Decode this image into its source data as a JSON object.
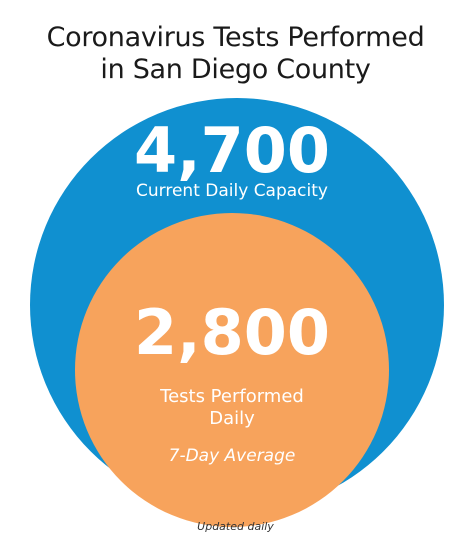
{
  "title": {
    "line1": "Coronavirus Tests Performed",
    "line2": "in San Diego County"
  },
  "capacity": {
    "value": "4,700",
    "label": "Current Daily Capacity",
    "color": "#1090d0"
  },
  "performed": {
    "value": "2,800",
    "label_line1": "Tests Performed",
    "label_line2": "Daily",
    "average_label": "7-Day Average",
    "color": "#f7a35c"
  },
  "footnote": "Updated daily"
}
